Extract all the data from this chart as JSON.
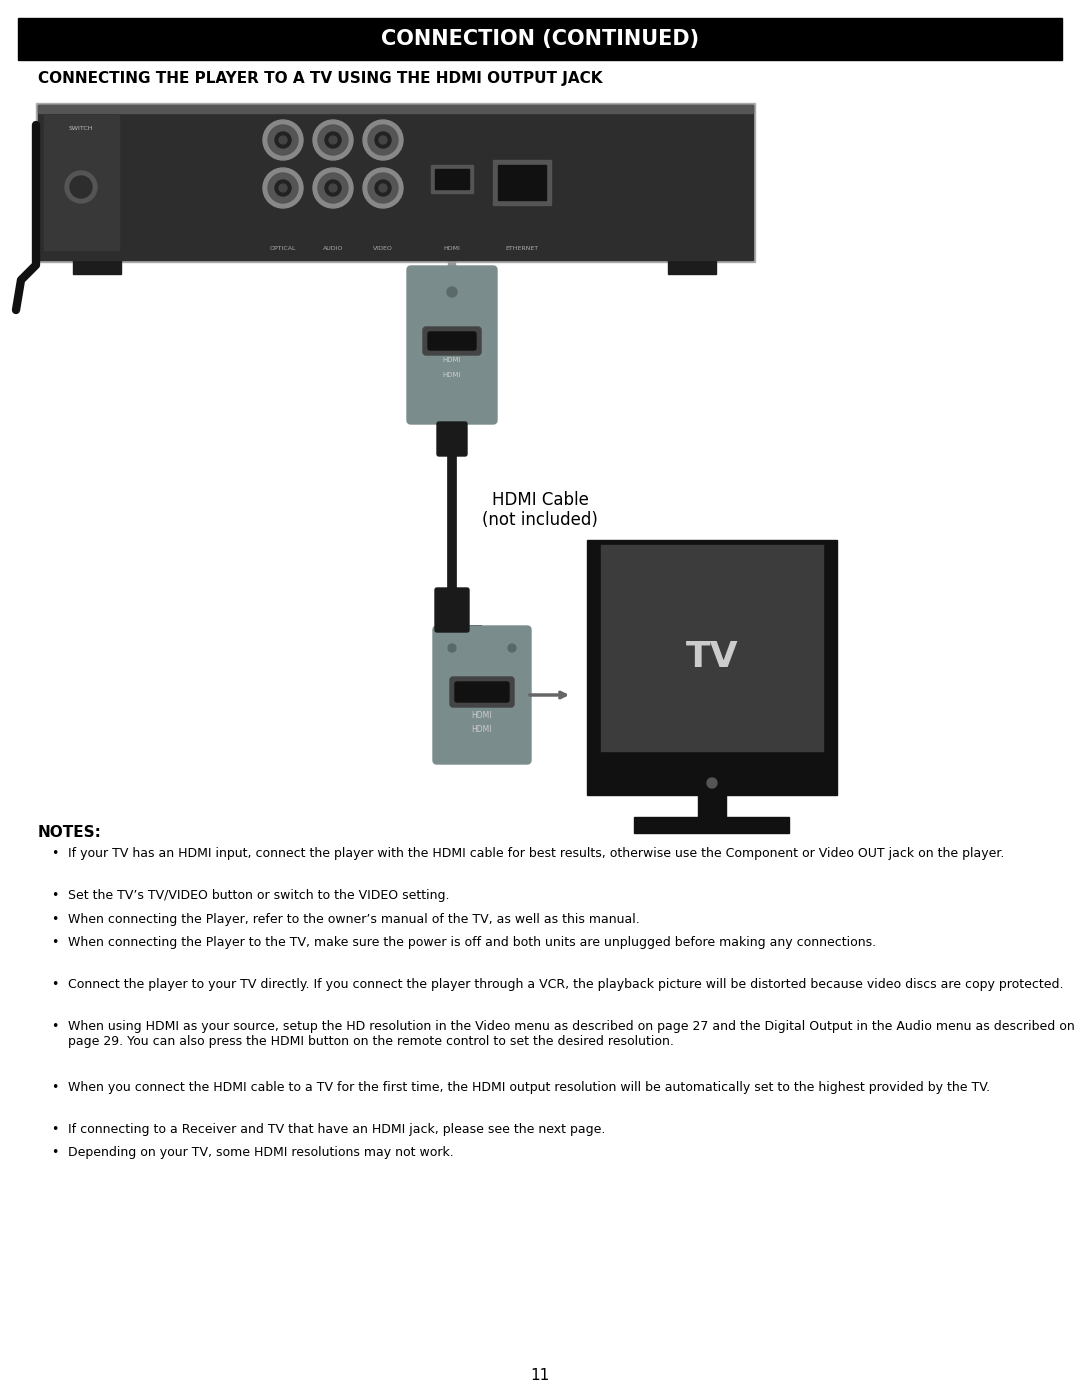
{
  "title": "CONNECTION (CONTINUED)",
  "subtitle": "CONNECTING THE PLAYER TO A TV USING THE HDMI OUTPUT JACK",
  "title_bg": "#000000",
  "title_color": "#ffffff",
  "page_bg": "#ffffff",
  "page_number": "11",
  "notes_title": "NOTES:",
  "notes": [
    "If your TV has an HDMI input, connect the player with the HDMI cable for best results, otherwise use the Component or Video OUT jack on the player.",
    "Set the TV’s TV/VIDEO button or switch to the VIDEO setting.",
    "When connecting the Player, refer to the owner’s manual of the TV, as well as this manual.",
    "When connecting the Player to the TV, make sure the power is off and both units are unplugged before making any connections.",
    "Connect the player to your TV directly. If you connect the player through a VCR, the playback picture will be distorted because video discs are copy protected.",
    "When using HDMI as your source, setup the HD resolution in the Video menu as described on page 27 and the Digital Output in the Audio menu as described on page 29. You can also press the HDMI button on the remote control to set the desired resolution.",
    "When you connect the HDMI cable to a TV for the first time, the HDMI output resolution will be automatically set to the highest provided by the TV.",
    "If connecting to a Receiver and TV that have an HDMI jack, please see the next page.",
    "Depending on your TV, some HDMI resolutions may not work."
  ],
  "hdmi_cable_label": "HDMI Cable\n(not included)",
  "tv_label": "TV"
}
